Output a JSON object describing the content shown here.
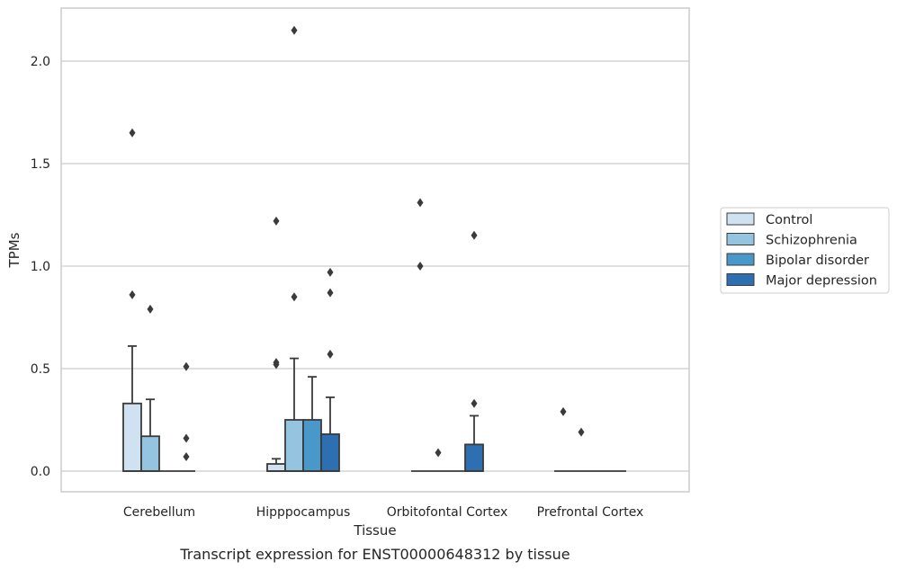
{
  "caption": "Transcript expression for ENST00000648312 by tissue",
  "chart_data": {
    "type": "box",
    "xlabel": "Tissue",
    "ylabel": "TPMs",
    "ylim": [
      -0.1,
      2.27
    ],
    "yticks": [
      0.0,
      0.5,
      1.0,
      1.5,
      2.0
    ],
    "ytick_labels": [
      "0.0",
      "0.5",
      "1.0",
      "1.5",
      "2.0"
    ],
    "grid": "horizontal",
    "legend_placement": "right",
    "categories": [
      "Cerebellum",
      "Hipppocampus",
      "Orbitofontal Cortex",
      "Prefrontal Cortex"
    ],
    "series": [
      {
        "name": "Control",
        "color": "#d0e1f2",
        "boxes": [
          {
            "q1": 0.0,
            "median": 0.0,
            "q3": 0.33,
            "whisker_low": 0.0,
            "whisker_high": 0.61,
            "outliers": [
              0.86,
              1.65
            ]
          },
          {
            "q1": 0.0,
            "median": 0.0,
            "q3": 0.035,
            "whisker_low": 0.0,
            "whisker_high": 0.06,
            "outliers": [
              0.52,
              0.53,
              1.22
            ]
          },
          {
            "q1": 0.0,
            "median": 0.0,
            "q3": 0.0,
            "whisker_low": 0.0,
            "whisker_high": 0.0,
            "outliers": [
              1.0,
              1.31
            ]
          },
          {
            "q1": 0.0,
            "median": 0.0,
            "q3": 0.0,
            "whisker_low": 0.0,
            "whisker_high": 0.0,
            "outliers": [
              0.29
            ]
          }
        ]
      },
      {
        "name": "Schizophrenia",
        "color": "#94c4df",
        "boxes": [
          {
            "q1": 0.0,
            "median": 0.0,
            "q3": 0.17,
            "whisker_low": 0.0,
            "whisker_high": 0.35,
            "outliers": [
              0.79
            ]
          },
          {
            "q1": 0.0,
            "median": 0.0,
            "q3": 0.25,
            "whisker_low": 0.0,
            "whisker_high": 0.55,
            "outliers": [
              0.85,
              2.15
            ]
          },
          {
            "q1": 0.0,
            "median": 0.0,
            "q3": 0.0,
            "whisker_low": 0.0,
            "whisker_high": 0.0,
            "outliers": [
              0.09
            ]
          },
          {
            "q1": 0.0,
            "median": 0.0,
            "q3": 0.0,
            "whisker_low": 0.0,
            "whisker_high": 0.0,
            "outliers": [
              0.19
            ]
          }
        ]
      },
      {
        "name": "Bipolar disorder",
        "color": "#4a98c9",
        "boxes": [
          {
            "q1": 0.0,
            "median": 0.0,
            "q3": 0.0,
            "whisker_low": 0.0,
            "whisker_high": 0.0,
            "outliers": []
          },
          {
            "q1": 0.0,
            "median": 0.0,
            "q3": 0.25,
            "whisker_low": 0.0,
            "whisker_high": 0.46,
            "outliers": []
          },
          {
            "q1": 0.0,
            "median": 0.0,
            "q3": 0.0,
            "whisker_low": 0.0,
            "whisker_high": 0.0,
            "outliers": []
          },
          {
            "q1": 0.0,
            "median": 0.0,
            "q3": 0.0,
            "whisker_low": 0.0,
            "whisker_high": 0.0,
            "outliers": []
          }
        ]
      },
      {
        "name": "Major depression",
        "color": "#2e6fb1",
        "boxes": [
          {
            "q1": 0.0,
            "median": 0.0,
            "q3": 0.0,
            "whisker_low": 0.0,
            "whisker_high": 0.0,
            "outliers": [
              0.07,
              0.16,
              0.51
            ]
          },
          {
            "q1": 0.0,
            "median": 0.0,
            "q3": 0.18,
            "whisker_low": 0.0,
            "whisker_high": 0.36,
            "outliers": [
              0.57,
              0.87,
              0.97
            ]
          },
          {
            "q1": 0.0,
            "median": 0.0,
            "q3": 0.13,
            "whisker_low": 0.0,
            "whisker_high": 0.27,
            "outliers": [
              0.33,
              1.15
            ]
          },
          {
            "q1": 0.0,
            "median": 0.0,
            "q3": 0.0,
            "whisker_low": 0.0,
            "whisker_high": 0.0,
            "outliers": []
          }
        ]
      }
    ],
    "colors": {
      "grid": "#cccccc",
      "frame": "#cccccc",
      "edge": "#3a3a3a",
      "outlier": "#3a3a3a"
    }
  }
}
